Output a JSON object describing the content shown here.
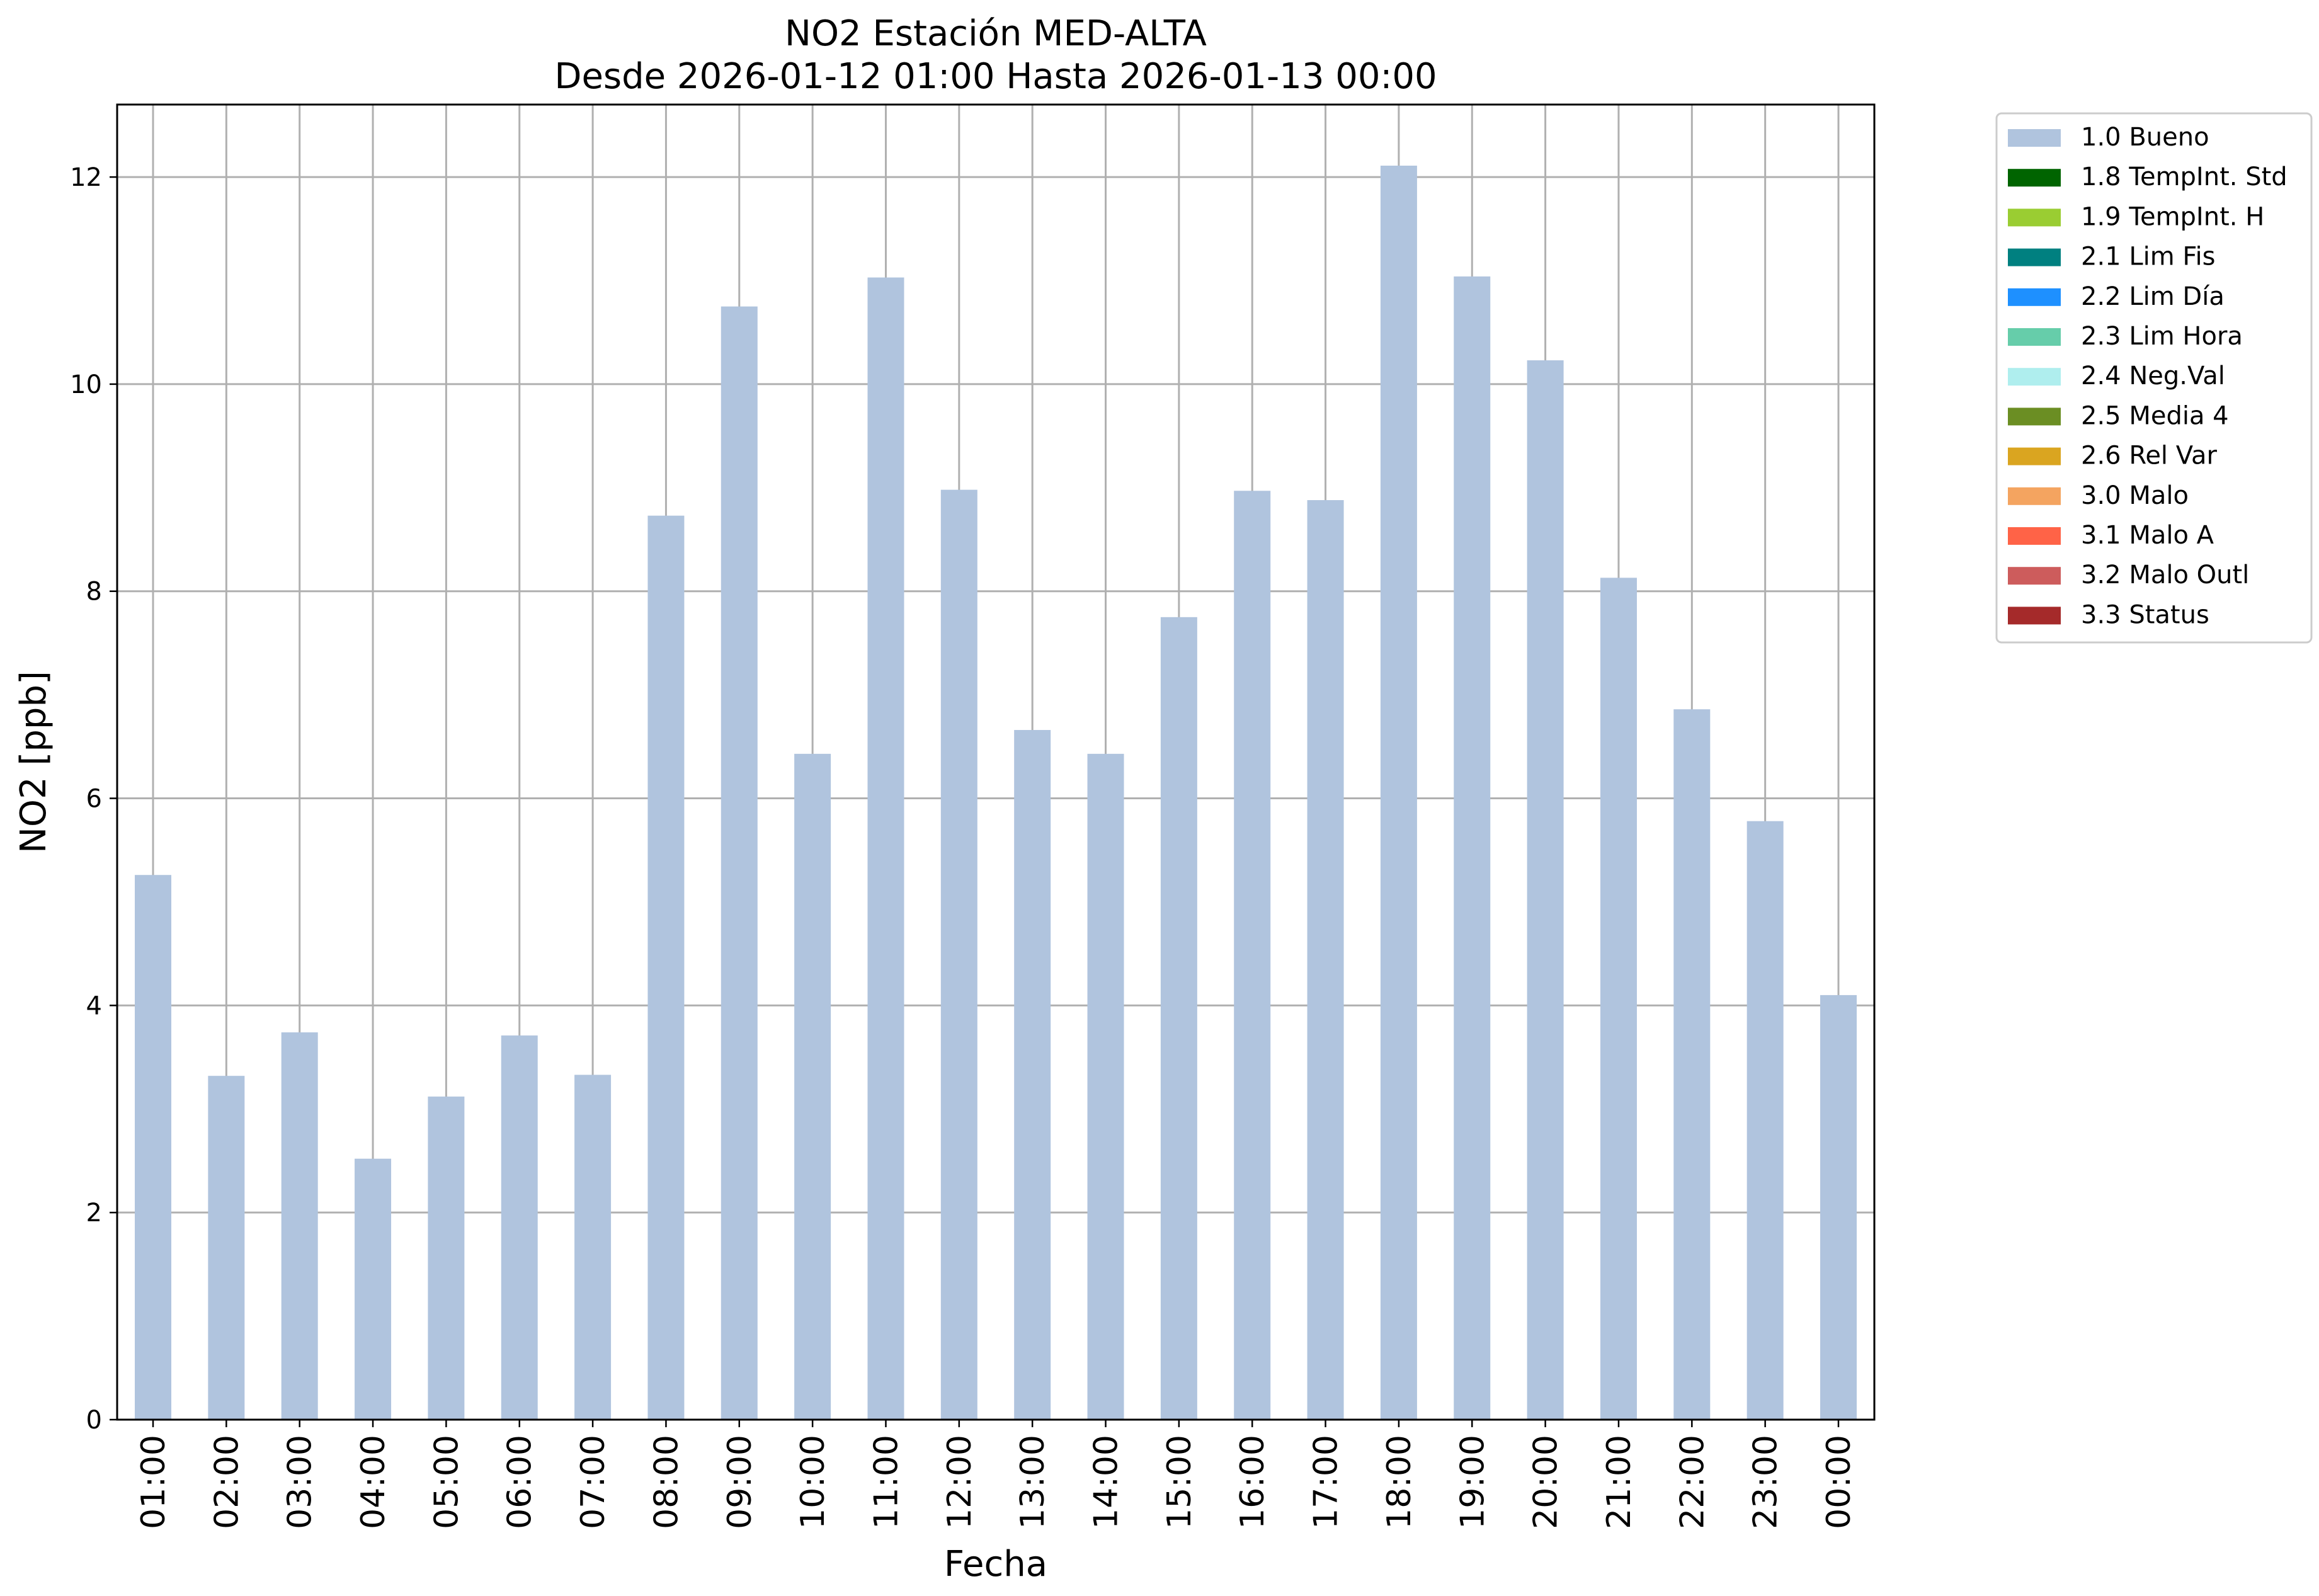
{
  "chart_data": {
    "type": "bar",
    "title": [
      "NO2 Estación MED-ALTA",
      "Desde 2026-01-12 01:00 Hasta 2026-01-13 00:00"
    ],
    "xlabel": "Fecha",
    "ylabel": "NO2 [ppb]",
    "ylim": [
      0,
      12.7
    ],
    "yticks": [
      0,
      2,
      4,
      6,
      8,
      10,
      12
    ],
    "grid": true,
    "legend_position": "outside-top-right",
    "categories": [
      "01:00",
      "02:00",
      "03:00",
      "04:00",
      "05:00",
      "06:00",
      "07:00",
      "08:00",
      "09:00",
      "10:00",
      "11:00",
      "12:00",
      "13:00",
      "14:00",
      "15:00",
      "16:00",
      "17:00",
      "18:00",
      "19:00",
      "20:00",
      "21:00",
      "22:00",
      "23:00",
      "00:00"
    ],
    "series": [
      {
        "name": "1.0 Bueno",
        "color": "#b0c4de",
        "values": [
          5.26,
          3.32,
          3.74,
          2.52,
          3.12,
          3.71,
          3.33,
          8.73,
          10.75,
          6.43,
          11.03,
          8.98,
          6.66,
          6.43,
          7.75,
          8.97,
          8.88,
          12.11,
          11.04,
          10.23,
          8.13,
          6.86,
          5.78,
          4.1
        ]
      }
    ],
    "legend": [
      {
        "label": "1.0 Bueno",
        "color": "#b0c4de"
      },
      {
        "label": "1.8 TempInt. Std",
        "color": "#006400"
      },
      {
        "label": "1.9 TempInt. H",
        "color": "#9acd32"
      },
      {
        "label": "2.1 Lim Fis",
        "color": "#008080"
      },
      {
        "label": "2.2 Lim Día",
        "color": "#1e90ff"
      },
      {
        "label": "2.3 Lim Hora",
        "color": "#66cdaa"
      },
      {
        "label": "2.4 Neg.Val",
        "color": "#afeeee"
      },
      {
        "label": "2.5 Media 4",
        "color": "#6b8e23"
      },
      {
        "label": "2.6 Rel Var",
        "color": "#daa520"
      },
      {
        "label": "3.0 Malo",
        "color": "#f4a460"
      },
      {
        "label": "3.1 Malo A",
        "color": "#ff6347"
      },
      {
        "label": "3.2 Malo Outl",
        "color": "#cd5c5c"
      },
      {
        "label": "3.3 Status",
        "color": "#a52a2a"
      }
    ]
  }
}
